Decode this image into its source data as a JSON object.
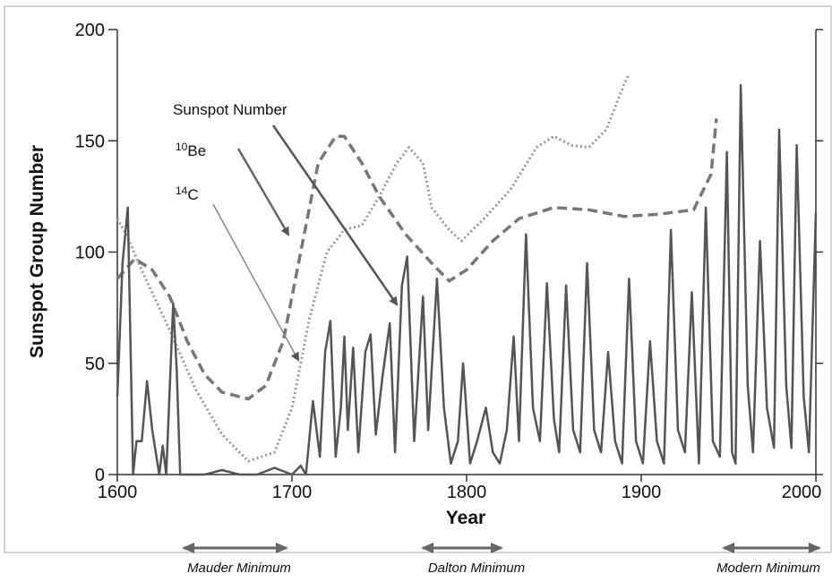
{
  "chart_data": {
    "type": "line",
    "x_label": "Year",
    "y_label": "Sunspot Group Number",
    "xlim": [
      1600,
      2000
    ],
    "xticks": [
      1600,
      1700,
      1800,
      1900,
      2000
    ],
    "ylim": [
      0,
      200
    ],
    "yticks": [
      0,
      50,
      100,
      150,
      200
    ],
    "series": [
      {
        "name": "Sunspot Number",
        "color": "#555555",
        "style": "solid",
        "x": [
          1600,
          1603,
          1606,
          1609,
          1611,
          1614,
          1617,
          1620,
          1622,
          1624,
          1626,
          1628,
          1632,
          1634,
          1636,
          1650,
          1660,
          1670,
          1680,
          1690,
          1700,
          1705,
          1708,
          1712,
          1716,
          1719,
          1722,
          1725,
          1728,
          1730,
          1732,
          1735,
          1738,
          1742,
          1745,
          1748,
          1752,
          1756,
          1759,
          1763,
          1766,
          1770,
          1775,
          1778,
          1783,
          1787,
          1791,
          1795,
          1798,
          1802,
          1806,
          1811,
          1815,
          1819,
          1823,
          1827,
          1830,
          1834,
          1838,
          1842,
          1846,
          1850,
          1853,
          1857,
          1861,
          1865,
          1869,
          1873,
          1877,
          1881,
          1885,
          1889,
          1893,
          1897,
          1901,
          1905,
          1909,
          1913,
          1917,
          1921,
          1925,
          1929,
          1933,
          1937,
          1941,
          1945,
          1949,
          1952,
          1954,
          1957,
          1961,
          1964,
          1968,
          1972,
          1976,
          1979,
          1983,
          1986,
          1989,
          1993,
          1996,
          2000
        ],
        "values": [
          35,
          95,
          120,
          0,
          15,
          15,
          42,
          20,
          10,
          0,
          13,
          0,
          77,
          47,
          0,
          0,
          2,
          0,
          0,
          3,
          0,
          4,
          0,
          33,
          8,
          55,
          69,
          8,
          30,
          62,
          20,
          57,
          10,
          55,
          63,
          18,
          45,
          68,
          10,
          85,
          98,
          15,
          80,
          20,
          88,
          30,
          5,
          15,
          50,
          5,
          15,
          30,
          10,
          5,
          20,
          62,
          15,
          108,
          30,
          15,
          86,
          25,
          10,
          85,
          20,
          10,
          95,
          20,
          10,
          55,
          15,
          5,
          88,
          15,
          5,
          60,
          15,
          5,
          110,
          20,
          10,
          82,
          5,
          120,
          15,
          8,
          145,
          10,
          5,
          175,
          40,
          10,
          105,
          30,
          12,
          155,
          40,
          12,
          148,
          35,
          10,
          118
        ]
      },
      {
        "name": "Be",
        "superscript": "10",
        "color": "#777777",
        "style": "dashed",
        "x": [
          1600,
          1610,
          1620,
          1630,
          1640,
          1650,
          1660,
          1675,
          1685,
          1695,
          1705,
          1715,
          1725,
          1730,
          1740,
          1750,
          1765,
          1780,
          1790,
          1800,
          1815,
          1830,
          1850,
          1870,
          1890,
          1910,
          1930,
          1940,
          1943
        ],
        "values": [
          88,
          97,
          92,
          80,
          60,
          45,
          37,
          34,
          40,
          60,
          100,
          140,
          152,
          152,
          140,
          125,
          108,
          95,
          87,
          92,
          105,
          115,
          120,
          119,
          116,
          117,
          119,
          135,
          160
        ]
      },
      {
        "name": "C",
        "superscript": "14",
        "color": "#999999",
        "style": "dotted",
        "x": [
          1600,
          1605,
          1615,
          1630,
          1645,
          1660,
          1675,
          1690,
          1700,
          1710,
          1720,
          1730,
          1740,
          1750,
          1760,
          1767,
          1775,
          1780,
          1790,
          1797,
          1810,
          1825,
          1840,
          1850,
          1860,
          1870,
          1880,
          1890,
          1893
        ],
        "values": [
          115,
          108,
          90,
          65,
          38,
          18,
          6,
          10,
          30,
          70,
          100,
          110,
          112,
          125,
          140,
          147,
          140,
          120,
          110,
          105,
          115,
          128,
          147,
          152,
          148,
          147,
          155,
          175,
          180
        ]
      }
    ],
    "minima": [
      "Mauder Minimum",
      "Dalton Minimum",
      "Modern Minimum"
    ]
  }
}
